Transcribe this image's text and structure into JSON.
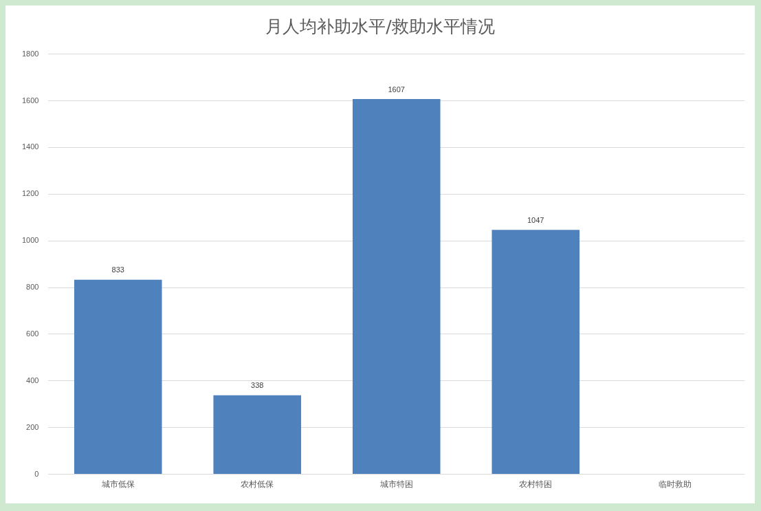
{
  "chart_data": {
    "type": "bar",
    "title": "月人均补助水平/救助水平情况",
    "categories": [
      "城市低保",
      "农村低保",
      "城市特困",
      "农村特困",
      "临时救助"
    ],
    "values": [
      833,
      338,
      1607,
      1047,
      null
    ],
    "color": "#4f81bd",
    "ylim": [
      0,
      1800
    ],
    "yticks": [
      0,
      200,
      400,
      600,
      800,
      1000,
      1200,
      1400,
      1600,
      1800
    ],
    "grid": "y",
    "legend": false,
    "data_labels": true
  }
}
